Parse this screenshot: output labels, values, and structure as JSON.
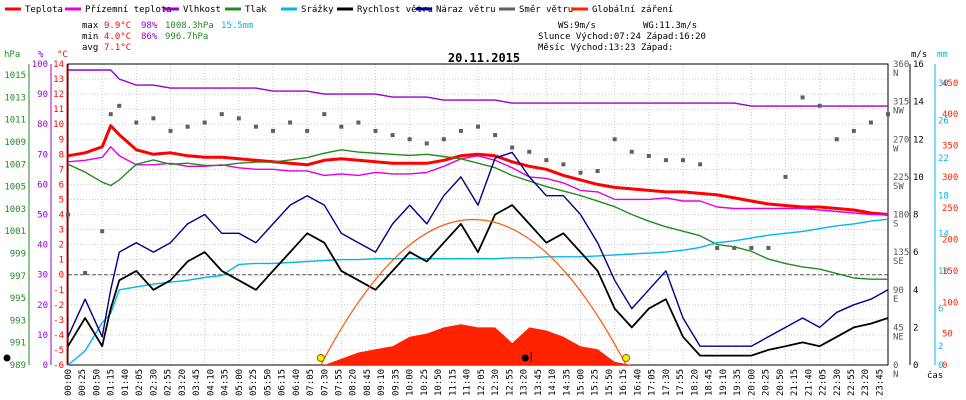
{
  "chart_data": {
    "type": "line",
    "title": "20.11.2015",
    "legend": [
      {
        "name": "Teplota",
        "color": "#ff0000"
      },
      {
        "name": "Přízemní teplota",
        "color": "#e000e0"
      },
      {
        "name": "Vlhkost",
        "color": "#9900cc"
      },
      {
        "name": "Tlak",
        "color": "#228b22"
      },
      {
        "name": "Srážky",
        "color": "#00b8e6"
      },
      {
        "name": "Rychlost větru",
        "color": "#000000"
      },
      {
        "name": "Náraz větru",
        "color": "#000088"
      },
      {
        "name": "Směr větru",
        "color": "#606060"
      },
      {
        "name": "Globální záření",
        "color": "#ff2200"
      }
    ],
    "stats": {
      "max": {
        "label": "max",
        "temp": "9.9°C",
        "hum": "98%",
        "press": "1008.3hPa",
        "rain": "15.5mm"
      },
      "min": {
        "label": "min",
        "temp": "4.0°C",
        "hum": "86%",
        "press": "996.7hPa"
      },
      "avg": {
        "label": "avg",
        "temp": "7.1°C"
      }
    },
    "info": {
      "ws": "WS:9m/s",
      "wg": "WG:11.3m/s",
      "sun": "Slunce Východ:07:24  Západ:16:20",
      "moon": "Měsíc  Východ:13:23  Západ:"
    },
    "axes": {
      "hpa": {
        "unit": "hPa",
        "range": [
          989,
          1016
        ],
        "ticks": [
          "989",
          "991",
          "993",
          "995",
          "997",
          "999",
          "1001",
          "1003",
          "1005",
          "1007",
          "1009",
          "1011",
          "1013",
          "1015"
        ]
      },
      "pct": {
        "unit": "%",
        "range": [
          0,
          100
        ],
        "ticks": [
          "0",
          "10",
          "20",
          "30",
          "40",
          "50",
          "60",
          "70",
          "80",
          "90",
          "100"
        ]
      },
      "degc": {
        "unit": "°C",
        "range": [
          -6,
          14
        ],
        "ticks": [
          "-6",
          "-5",
          "-4",
          "-3",
          "-2",
          "-1",
          "0",
          "1",
          "2",
          "3",
          "4",
          "5",
          "6",
          "7",
          "8",
          "9",
          "10",
          "11",
          "12",
          "13",
          "14"
        ]
      },
      "dir": {
        "unit": "°",
        "range": [
          0,
          360
        ],
        "ticks": [
          {
            "v": 0,
            "deg": "0",
            "lab": "N"
          },
          {
            "v": 45,
            "deg": "45",
            "lab": "NE"
          },
          {
            "v": 90,
            "deg": "90",
            "lab": "E"
          },
          {
            "v": 135,
            "deg": "135",
            "lab": "SE"
          },
          {
            "v": 180,
            "deg": "180",
            "lab": "S"
          },
          {
            "v": 225,
            "deg": "225",
            "lab": "SW"
          },
          {
            "v": 270,
            "deg": "270",
            "lab": "W"
          },
          {
            "v": 315,
            "deg": "315",
            "lab": "NW"
          },
          {
            "v": 360,
            "deg": "360",
            "lab": "N"
          }
        ]
      },
      "ms": {
        "unit": "m/s",
        "range": [
          0,
          16
        ],
        "ticks": [
          "0",
          "2",
          "4",
          "6",
          "8",
          "10",
          "12",
          "14",
          "16"
        ]
      },
      "mm": {
        "unit": "mm",
        "range": [
          0,
          32
        ],
        "ticks": [
          "0",
          "2",
          "4",
          "6",
          "8",
          "10",
          "12",
          "14",
          "16",
          "18",
          "20",
          "22",
          "24",
          "26",
          "28",
          "30",
          "32"
        ]
      },
      "wm2": {
        "unit": "W/m²",
        "range": [
          0,
          480
        ],
        "ticks": [
          "0",
          "50",
          "100",
          "150",
          "200",
          "250",
          "300",
          "350",
          "400",
          "450"
        ]
      },
      "xlabel": "čas",
      "x_ticks": [
        "00:00",
        "00:25",
        "00:50",
        "01:15",
        "01:40",
        "02:05",
        "02:30",
        "02:55",
        "03:20",
        "03:45",
        "04:10",
        "04:35",
        "05:00",
        "05:25",
        "05:50",
        "06:15",
        "06:40",
        "07:05",
        "07:30",
        "07:55",
        "08:20",
        "08:45",
        "09:10",
        "09:35",
        "10:00",
        "10:25",
        "10:50",
        "11:15",
        "11:40",
        "12:05",
        "12:30",
        "12:55",
        "13:20",
        "13:45",
        "14:10",
        "14:35",
        "15:00",
        "15:25",
        "15:50",
        "16:15",
        "16:40",
        "17:05",
        "17:30",
        "17:55",
        "18:20",
        "18:45",
        "19:10",
        "19:35",
        "20:00",
        "20:25",
        "20:50",
        "21:15",
        "21:40",
        "22:05",
        "22:30",
        "22:55",
        "23:20",
        "23:45"
      ]
    },
    "x_hours": [
      0,
      0.5,
      1,
      1.25,
      1.5,
      2,
      2.5,
      3,
      3.5,
      4,
      4.5,
      5,
      5.5,
      6,
      6.5,
      7,
      7.5,
      8,
      8.5,
      9,
      9.5,
      10,
      10.5,
      11,
      11.5,
      12,
      12.5,
      13,
      13.5,
      14,
      14.5,
      15,
      15.5,
      16,
      16.5,
      17,
      17.5,
      18,
      18.5,
      19,
      19.5,
      20,
      20.5,
      21,
      21.5,
      22,
      22.5,
      23,
      23.5,
      24
    ],
    "series": [
      {
        "name": "Teplota",
        "axis": "degc",
        "values": [
          7.9,
          8.1,
          8.5,
          9.9,
          9.3,
          8.3,
          8.0,
          8.1,
          7.9,
          7.8,
          7.8,
          7.7,
          7.6,
          7.5,
          7.4,
          7.3,
          7.6,
          7.7,
          7.6,
          7.5,
          7.4,
          7.4,
          7.4,
          7.6,
          7.9,
          8.0,
          7.9,
          7.5,
          7.2,
          7.0,
          6.6,
          6.3,
          6.0,
          5.8,
          5.7,
          5.6,
          5.5,
          5.5,
          5.4,
          5.3,
          5.1,
          4.9,
          4.7,
          4.6,
          4.5,
          4.5,
          4.4,
          4.3,
          4.1,
          4.0
        ]
      },
      {
        "name": "Přízemní teplota",
        "axis": "degc",
        "values": [
          7.5,
          7.6,
          7.8,
          8.5,
          7.9,
          7.3,
          7.3,
          7.4,
          7.2,
          7.2,
          7.3,
          7.1,
          7.0,
          7.0,
          6.9,
          6.9,
          6.6,
          6.7,
          6.6,
          6.8,
          6.7,
          6.7,
          6.8,
          7.2,
          7.7,
          7.9,
          7.6,
          7.1,
          6.5,
          6.4,
          6.1,
          5.6,
          5.5,
          5.0,
          5.0,
          5.0,
          5.1,
          4.9,
          4.9,
          4.5,
          4.4,
          4.4,
          4.4,
          4.4,
          4.4,
          4.3,
          4.2,
          4.1,
          4.0,
          4.0
        ]
      },
      {
        "name": "Vlhkost",
        "axis": "pct",
        "values": [
          98,
          98,
          98,
          98,
          95,
          93,
          93,
          92,
          92,
          92,
          92,
          92,
          92,
          91,
          91,
          91,
          90,
          90,
          90,
          90,
          89,
          89,
          89,
          88,
          88,
          88,
          88,
          87,
          87,
          87,
          87,
          87,
          87,
          87,
          87,
          87,
          87,
          87,
          87,
          87,
          87,
          86,
          86,
          86,
          86,
          86,
          86,
          86,
          86,
          86
        ]
      },
      {
        "name": "Tlak",
        "axis": "hpa",
        "values": [
          1007.0,
          1006.3,
          1005.4,
          1005.1,
          1005.6,
          1007.0,
          1007.4,
          1007.0,
          1007.1,
          1006.9,
          1006.9,
          1007.1,
          1007.2,
          1007.2,
          1007.4,
          1007.6,
          1008.0,
          1008.3,
          1008.1,
          1008.0,
          1007.9,
          1007.8,
          1007.9,
          1007.7,
          1007.5,
          1007.1,
          1006.7,
          1006.0,
          1005.5,
          1005.0,
          1004.6,
          1004.2,
          1003.7,
          1003.2,
          1002.5,
          1001.9,
          1001.4,
          1001.0,
          1000.6,
          999.8,
          999.6,
          999.2,
          998.5,
          998.1,
          997.8,
          997.6,
          997.2,
          996.8,
          996.7,
          996.7
        ]
      },
      {
        "name": "Srážky",
        "axis": "mm",
        "values": [
          0,
          1.5,
          4.5,
          5.5,
          8.0,
          8.3,
          8.6,
          8.8,
          9.0,
          9.3,
          9.5,
          10.7,
          10.8,
          10.8,
          10.9,
          11.0,
          11.1,
          11.2,
          11.2,
          11.3,
          11.3,
          11.3,
          11.3,
          11.3,
          11.3,
          11.3,
          11.3,
          11.4,
          11.4,
          11.5,
          11.5,
          11.5,
          11.6,
          11.7,
          11.8,
          11.9,
          12.0,
          12.2,
          12.5,
          13.0,
          13.2,
          13.5,
          13.8,
          14.0,
          14.2,
          14.5,
          14.8,
          15.0,
          15.3,
          15.5
        ]
      },
      {
        "name": "Rychlost větru",
        "axis": "ms",
        "values": [
          1.0,
          2.5,
          1.0,
          3.0,
          4.5,
          5.0,
          4.0,
          4.5,
          5.5,
          6.0,
          5.0,
          4.5,
          4.0,
          5.0,
          6.0,
          7.0,
          6.5,
          5.0,
          4.5,
          4.0,
          5.0,
          6.0,
          5.5,
          6.5,
          7.5,
          6.0,
          8.0,
          8.5,
          7.5,
          6.5,
          7.0,
          6.0,
          5.0,
          3.0,
          2.0,
          3.0,
          3.5,
          1.5,
          0.5,
          0.5,
          0.5,
          0.5,
          0.8,
          1.0,
          1.2,
          1.0,
          1.5,
          2.0,
          2.2,
          2.5
        ]
      },
      {
        "name": "Náraz větru",
        "axis": "ms",
        "values": [
          1.5,
          3.5,
          1.5,
          4.0,
          6.0,
          6.5,
          6.0,
          6.5,
          7.5,
          8.0,
          7.0,
          7.0,
          6.5,
          7.5,
          8.5,
          9.0,
          8.5,
          7.0,
          6.5,
          6.0,
          7.5,
          8.5,
          7.5,
          9.0,
          10.0,
          8.5,
          11.0,
          11.3,
          10.0,
          9.0,
          9.0,
          8.0,
          6.5,
          4.5,
          3.0,
          4.0,
          5.0,
          2.5,
          1.0,
          1.0,
          1.0,
          1.0,
          1.5,
          2.0,
          2.5,
          2.0,
          2.8,
          3.2,
          3.5,
          4.0
        ]
      },
      {
        "name": "Směr větru",
        "axis": "dir",
        "values": [
          180,
          110,
          160,
          300,
          310,
          290,
          295,
          280,
          285,
          290,
          300,
          295,
          285,
          280,
          290,
          280,
          300,
          285,
          290,
          280,
          275,
          270,
          265,
          270,
          280,
          285,
          275,
          260,
          255,
          245,
          240,
          230,
          232,
          270,
          255,
          250,
          245,
          245,
          240,
          140,
          140,
          140,
          140,
          225,
          320,
          310,
          270,
          280,
          290,
          300
        ]
      },
      {
        "name": "Globální záření",
        "axis": "wm2",
        "values": [
          0,
          0,
          0,
          0,
          0,
          0,
          0,
          0,
          0,
          0,
          0,
          0,
          0,
          0,
          0,
          0,
          0,
          10,
          20,
          25,
          30,
          45,
          50,
          60,
          65,
          60,
          60,
          35,
          60,
          55,
          45,
          30,
          25,
          5,
          0,
          0,
          0,
          0,
          0,
          0,
          0,
          0,
          0,
          0,
          0,
          0,
          0,
          0,
          0,
          0
        ]
      }
    ]
  }
}
